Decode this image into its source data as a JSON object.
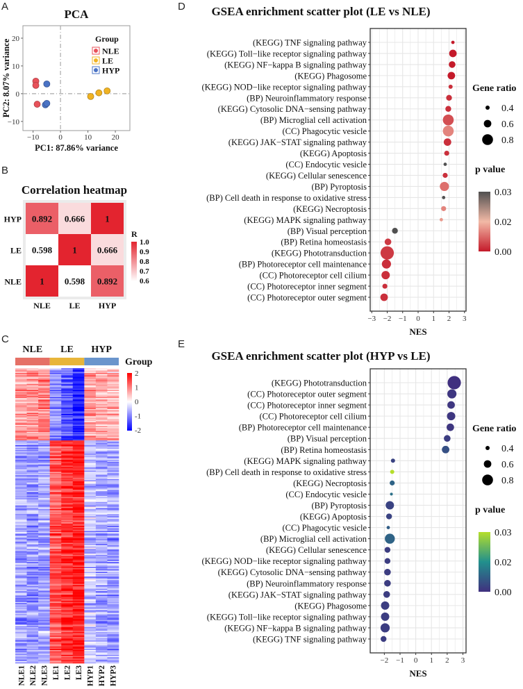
{
  "panel_labels": {
    "a": "A",
    "b": "B",
    "c": "C",
    "d": "D",
    "e": "E"
  },
  "chart_data": [
    {
      "id": "pca",
      "type": "scatter",
      "title": "PCA",
      "xlabel": "PC1: 87.86% variance",
      "ylabel": "PC2: 8.07% variance",
      "xlim": [
        -13.7,
        25.3
      ],
      "ylim": [
        -13.3,
        24.5
      ],
      "xticks": [
        -10,
        0,
        10,
        20
      ],
      "yticks": [
        -10,
        0,
        10,
        20
      ],
      "xtick_labels": [
        "−10",
        "0",
        "10",
        "20"
      ],
      "ytick_labels": [
        "−10",
        "0",
        "10",
        "20"
      ],
      "legend": {
        "title": "Group",
        "placement": "top-right"
      },
      "series": [
        {
          "name": "NLE",
          "color": "#e8525a",
          "points": [
            [
              -9,
              4.5
            ],
            [
              -9,
              3
            ],
            [
              -8.5,
              -3.8
            ]
          ]
        },
        {
          "name": "LE",
          "color": "#f0b323",
          "points": [
            [
              11,
              -1
            ],
            [
              14,
              0.3
            ],
            [
              17,
              1
            ]
          ]
        },
        {
          "name": "HYP",
          "color": "#4a73c5",
          "points": [
            [
              -5,
              3.5
            ],
            [
              -5.5,
              -4
            ],
            [
              -5,
              -3.5
            ]
          ]
        }
      ]
    },
    {
      "id": "correlation",
      "type": "heatmap",
      "title": "Correlation heatmap",
      "rows": [
        "HYP",
        "LE",
        "NLE"
      ],
      "columns": [
        "NLE",
        "LE",
        "HYP"
      ],
      "values": [
        [
          0.892,
          0.666,
          1
        ],
        [
          0.598,
          1,
          0.666
        ],
        [
          1,
          0.598,
          0.892
        ]
      ],
      "value_labels": [
        [
          "0.892",
          "0.666",
          "1"
        ],
        [
          "0.598",
          "1",
          "0.666"
        ],
        [
          "1",
          "0.598",
          "0.892"
        ]
      ],
      "range": [
        0.6,
        1.0
      ],
      "colors": {
        "low": "#ffffff",
        "high": "#e3242f"
      },
      "legend": {
        "title": "R",
        "ticks": [
          "1.0",
          "0.9",
          "0.8",
          "0.7",
          "0.6"
        ]
      }
    },
    {
      "id": "expression",
      "type": "heatmap",
      "groups": [
        {
          "name": "NLE",
          "color": "#e57066"
        },
        {
          "name": "LE",
          "color": "#e8b53a"
        },
        {
          "name": "HYP",
          "color": "#6a95cc"
        }
      ],
      "group_legend_title": "Group",
      "columns": [
        "NLE1",
        "NLE2",
        "NLE3",
        "LE1",
        "LE2",
        "LE3",
        "HYP1",
        "HYP2",
        "HYP3"
      ],
      "row_clusters": [
        {
          "rows": 60,
          "means": [
            0.8,
            0.9,
            0.95,
            -0.9,
            -1.3,
            -1.8,
            0.7,
            0.55,
            0.6
          ]
        },
        {
          "rows": 185,
          "means": [
            -0.7,
            -0.8,
            -0.7,
            1.3,
            1.6,
            1.8,
            -0.45,
            -0.65,
            -0.7
          ]
        }
      ],
      "range": [
        -2,
        2
      ],
      "legend": {
        "ticks": [
          "2",
          "1",
          "0",
          "-1",
          "-2"
        ]
      },
      "colors": {
        "low": "#0000ff",
        "mid": "#ffffff",
        "high": "#ff0000"
      }
    },
    {
      "id": "gsea_le_vs_nle",
      "type": "scatter",
      "title": "GSEA enrichment scatter plot (LE vs NLE)",
      "xlabel": "NES",
      "xlim": [
        -3.1,
        3.1
      ],
      "xticks": [
        -3,
        -2,
        -1,
        0,
        1,
        2,
        3
      ],
      "xtick_labels": [
        "−3",
        "−2",
        "−1",
        "0",
        "1",
        "2",
        "3"
      ],
      "terms": [
        "(KEGG) TNF signaling pathway",
        "(KEGG) Toll−like receptor signaling pathway",
        "(KEGG) NF−kappa B signaling pathway",
        "(KEGG) Phagosome",
        "(KEGG) NOD−like receptor signaling pathway",
        "(BP) Neuroinflammatory response",
        "(KEGG) Cytosolic DNA−sensing pathway",
        "(BP) Microglial cell activation",
        "(CC) Phagocytic vesicle",
        "(KEGG) JAK−STAT signaling pathway",
        "(KEGG) Apoptosis",
        "(CC) Endocytic vesicle",
        "(KEGG) Cellular senescence",
        "(BP) Pyroptosis",
        "(BP) Cell death in response to oxidative stress",
        "(KEGG) Necroptosis",
        "(KEGG) MAPK signaling pathway",
        "(BP) Visual perception",
        "(BP) Retina homeostasis",
        "(KEGG) Phototransduction",
        "(BP) Photoreceptor cell maintenance",
        "(CC) Photoreceptor cell cilium",
        "(CC) Photoreceptor inner segment",
        "(CC) Photoreceptor outer segment"
      ],
      "nes": [
        2.25,
        2.25,
        2.2,
        2.15,
        2.1,
        2.0,
        1.95,
        1.95,
        1.95,
        1.9,
        1.85,
        1.75,
        1.75,
        1.7,
        1.65,
        1.65,
        1.5,
        -1.5,
        -1.95,
        -2.0,
        -2.05,
        -2.1,
        -2.15,
        -2.2
      ],
      "gene_ratio": [
        0.35,
        0.6,
        0.55,
        0.6,
        0.4,
        0.5,
        0.5,
        0.8,
        0.8,
        0.6,
        0.45,
        0.35,
        0.45,
        0.7,
        0.35,
        0.45,
        0.35,
        0.5,
        0.55,
        0.95,
        0.7,
        0.65,
        0.45,
        0.6
      ],
      "p_value": [
        0.0,
        0.0,
        0.0,
        0.0,
        0.002,
        0.002,
        0.002,
        0.005,
        0.01,
        0.002,
        0.002,
        0.03,
        0.002,
        0.008,
        0.03,
        0.01,
        0.012,
        0.032,
        0.003,
        0.003,
        0.002,
        0.002,
        0.002,
        0.002
      ],
      "size_legend": {
        "title": "Gene ratio",
        "values": [
          0.4,
          0.6,
          0.8
        ],
        "labels": [
          "0.4",
          "0.6",
          "0.8"
        ]
      },
      "color_legend": {
        "title": "p value",
        "labels": [
          "0.03",
          "0.02",
          "0.00"
        ],
        "colors": [
          "#c41a2a",
          "#f2b9a6",
          "#505050"
        ]
      }
    },
    {
      "id": "gsea_hyp_vs_le",
      "type": "scatter",
      "title": "GSEA enrichment scatter plot (HYP vs LE)",
      "xlabel": "NES",
      "xlim": [
        -2.9,
        3.2
      ],
      "xticks": [
        -2,
        -1,
        0,
        1,
        2,
        3
      ],
      "xtick_labels": [
        "−2",
        "−1",
        "0",
        "1",
        "2",
        "3"
      ],
      "terms": [
        "(KEGG) Phototransduction",
        "(CC) Photoreceptor outer segment",
        "(CC) Photoreceptor inner segment",
        "(CC) Photoreceptor cell cilium",
        "(BP) Photoreceptor cell maintenance",
        "(BP) Visual perception",
        "(BP) Retina homeostasis",
        "(KEGG) MAPK signaling pathway",
        "(BP) Cell death in response to oxidative stress",
        "(KEGG) Necroptosis",
        "(CC) Endocytic vesicle",
        "(BP) Pyroptosis",
        "(KEGG) Apoptosis",
        "(CC) Phagocytic vesicle",
        "(BP) Microglial cell activation",
        "(KEGG) Cellular senescence",
        "(KEGG) NOD−like receptor signaling pathway",
        "(KEGG) Cytosolic DNA−sensing pathway",
        "(BP) Neuroinflammatory response",
        "(KEGG) JAK−STAT signaling pathway",
        "(KEGG) Phagosome",
        "(KEGG) Toll−like receptor signaling pathway",
        "(KEGG) NF−kappa B signaling pathway",
        "(KEGG) TNF signaling pathway"
      ],
      "nes": [
        2.45,
        2.3,
        2.25,
        2.25,
        2.2,
        2.0,
        1.9,
        -1.45,
        -1.5,
        -1.5,
        -1.55,
        -1.65,
        -1.7,
        -1.75,
        -1.65,
        -1.8,
        -1.8,
        -1.8,
        -1.8,
        -1.85,
        -1.95,
        -1.95,
        -1.95,
        -2.05
      ],
      "gene_ratio": [
        0.95,
        0.7,
        0.6,
        0.65,
        0.6,
        0.55,
        0.6,
        0.4,
        0.4,
        0.45,
        0.32,
        0.65,
        0.5,
        0.35,
        0.75,
        0.5,
        0.5,
        0.55,
        0.55,
        0.55,
        0.65,
        0.65,
        0.7,
        0.5
      ],
      "p_value": [
        0.0,
        0.001,
        0.001,
        0.001,
        0.001,
        0.002,
        0.005,
        0.003,
        0.03,
        0.008,
        0.01,
        0.003,
        0.003,
        0.007,
        0.008,
        0.002,
        0.002,
        0.002,
        0.002,
        0.002,
        0.002,
        0.002,
        0.002,
        0.002
      ],
      "size_legend": {
        "title": "Gene ratio",
        "values": [
          0.4,
          0.6,
          0.8
        ],
        "labels": [
          "0.4",
          "0.6",
          "0.8"
        ]
      },
      "color_legend": {
        "title": "p value",
        "labels": [
          "0.03",
          "0.02",
          "0.00"
        ],
        "colors": [
          "#40307f",
          "#21908d",
          "#b5de2b"
        ]
      }
    }
  ]
}
